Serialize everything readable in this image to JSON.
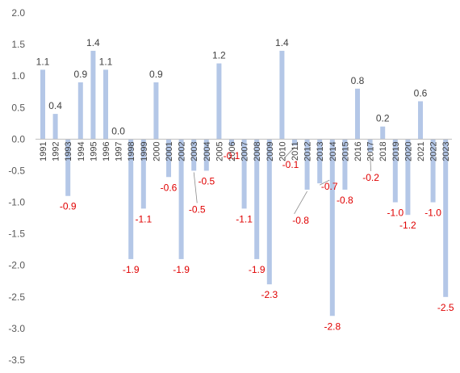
{
  "chart_data": {
    "type": "bar",
    "title": "",
    "xlabel": "",
    "ylabel": "",
    "ylim": [
      -3.5,
      2.0
    ],
    "ytick_step": 0.5,
    "grid": false,
    "legend": "none",
    "colors": {
      "bar": "#b4c7e7",
      "positive_label": "#404040",
      "negative_label": "#e00000",
      "axis": "#bfbfbf"
    },
    "categories": [
      "1991",
      "1992",
      "1993",
      "1994",
      "1995",
      "1996",
      "1997",
      "1998",
      "1999",
      "2000",
      "2001",
      "2002",
      "2003",
      "2004",
      "2005",
      "2006",
      "2007",
      "2008",
      "2009",
      "2010",
      "2011",
      "2012",
      "2013",
      "2014",
      "2015",
      "2016",
      "2017",
      "2018",
      "2019",
      "2020",
      "2021",
      "2022",
      "2023"
    ],
    "values": [
      1.1,
      0.4,
      -0.9,
      0.9,
      1.4,
      1.1,
      0.0,
      -1.9,
      -1.1,
      0.9,
      -0.6,
      -1.9,
      -0.5,
      -0.5,
      1.2,
      -0.1,
      -1.1,
      -1.9,
      -2.3,
      1.4,
      -0.1,
      -0.8,
      -0.7,
      -2.8,
      -0.8,
      0.8,
      -0.2,
      0.2,
      -1.0,
      -1.2,
      0.6,
      -1.0,
      -2.5
    ]
  }
}
